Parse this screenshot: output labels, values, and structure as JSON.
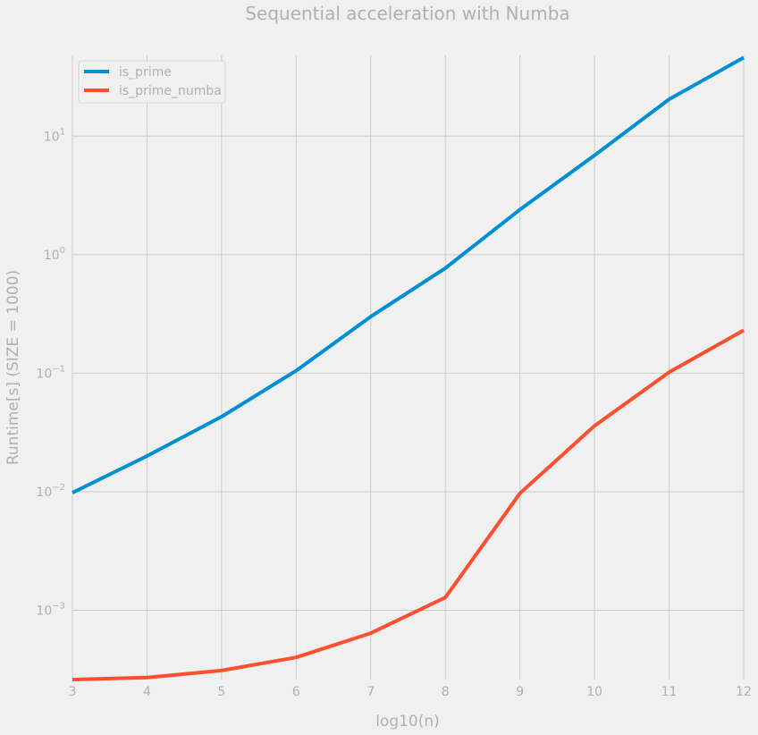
{
  "chart_data": {
    "type": "line",
    "title": "Sequential acceleration with Numba",
    "xlabel": "log10(n)",
    "ylabel": "Runtime[s] (SIZE = 1000)",
    "yscale": "log",
    "xlim": [
      3,
      12
    ],
    "ylim": [
      0.00026,
      48
    ],
    "grid": true,
    "legend_position": "top-left",
    "x": [
      3,
      4,
      5,
      6,
      7,
      8,
      9,
      10,
      11,
      12
    ],
    "x_ticks": [
      "3",
      "4",
      "5",
      "6",
      "7",
      "8",
      "9",
      "10",
      "11",
      "12"
    ],
    "y_ticks": [
      {
        "value": 10,
        "base": "10",
        "exp": "1"
      },
      {
        "value": 1,
        "base": "10",
        "exp": "0"
      },
      {
        "value": 0.1,
        "base": "10",
        "exp": "−1"
      },
      {
        "value": 0.01,
        "base": "10",
        "exp": "−2"
      },
      {
        "value": 0.001,
        "base": "10",
        "exp": "−3"
      }
    ],
    "series": [
      {
        "name": "is_prime",
        "color": "#008fd5",
        "values": [
          0.0098,
          0.02,
          0.043,
          0.105,
          0.3,
          0.77,
          2.4,
          6.9,
          20.5,
          46
        ]
      },
      {
        "name": "is_prime_numba",
        "color": "#fc4f30",
        "values": [
          0.00026,
          0.00027,
          0.00031,
          0.0004,
          0.00064,
          0.00128,
          0.0097,
          0.036,
          0.102,
          0.23
        ]
      }
    ]
  }
}
